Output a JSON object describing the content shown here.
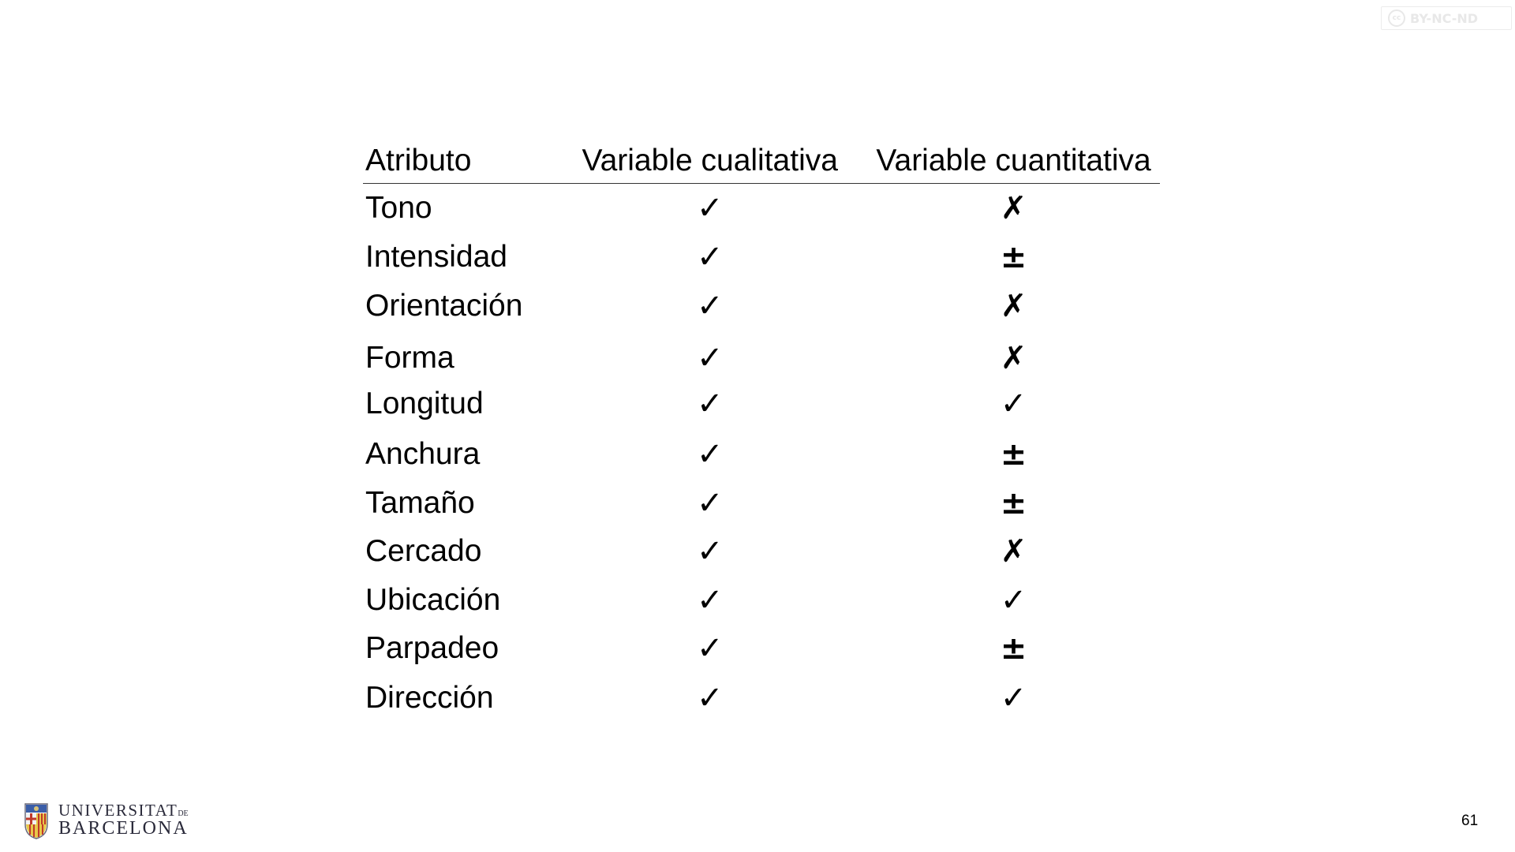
{
  "license_badge": {
    "cc_symbol": "cc",
    "label": "BY-NC-ND"
  },
  "table": {
    "headers": [
      "Atributo",
      "Variable cualitativa",
      "Variable cuantitativa"
    ],
    "rows": [
      {
        "attribute": "Tono",
        "qualitative": "✓",
        "quantitative": "✗"
      },
      {
        "attribute": "Intensidad",
        "qualitative": "✓",
        "quantitative": "±"
      },
      {
        "attribute": "Orientación",
        "qualitative": "✓",
        "quantitative": "✗"
      },
      {
        "attribute": "Forma",
        "qualitative": "✓",
        "quantitative": "✗"
      },
      {
        "attribute": "Longitud",
        "qualitative": "✓",
        "quantitative": "✓"
      },
      {
        "attribute": "Anchura",
        "qualitative": "✓",
        "quantitative": "±"
      },
      {
        "attribute": "Tamaño",
        "qualitative": "✓",
        "quantitative": "±"
      },
      {
        "attribute": "Cercado",
        "qualitative": "✓",
        "quantitative": "✗"
      },
      {
        "attribute": "Ubicación",
        "qualitative": "✓",
        "quantitative": "✓"
      },
      {
        "attribute": "Parpadeo",
        "qualitative": "✓",
        "quantitative": "±"
      },
      {
        "attribute": "Dirección",
        "qualitative": "✓",
        "quantitative": "✓"
      }
    ]
  },
  "footer": {
    "logo_line1": "UNIVERSITAT",
    "logo_line1_suffix": "DE",
    "logo_line2": "BARCELONA",
    "page_number": "61"
  }
}
